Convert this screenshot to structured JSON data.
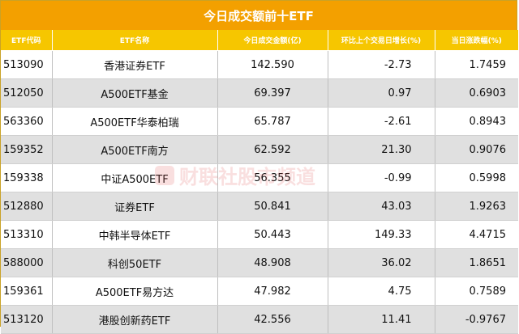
{
  "title": "今日成交额前十ETF",
  "headers": [
    "ETF代码",
    "ETF名称",
    "今日成交金额(亿)",
    "环比上个交易日增长(%)",
    "当日涨跌幅(%)"
  ],
  "rows": [
    {
      "code": "513090",
      "name": "香港证券ETF",
      "amount": "142.590",
      "ratio": "-2.73",
      "change": "1.7459"
    },
    {
      "code": "512050",
      "name": "A500ETF基金",
      "amount": "69.397",
      "ratio": "0.97",
      "change": "0.6903"
    },
    {
      "code": "563360",
      "name": "A500ETF华泰柏瑞",
      "amount": "65.787",
      "ratio": "-2.61",
      "change": "0.8943"
    },
    {
      "code": "159352",
      "name": "A500ETF南方",
      "amount": "62.592",
      "ratio": "21.30",
      "change": "0.9076"
    },
    {
      "code": "159338",
      "name": "中证A500ETF",
      "amount": "56.355",
      "ratio": "-0.99",
      "change": "0.5998"
    },
    {
      "code": "512880",
      "name": "证券ETF",
      "amount": "50.841",
      "ratio": "43.03",
      "change": "1.9263"
    },
    {
      "code": "513310",
      "name": "中韩半导体ETF",
      "amount": "50.443",
      "ratio": "149.33",
      "change": "4.4715"
    },
    {
      "code": "588000",
      "name": "科创50ETF",
      "amount": "48.908",
      "ratio": "36.02",
      "change": "1.8651"
    },
    {
      "code": "159361",
      "name": "A500ETF易方达",
      "amount": "47.982",
      "ratio": "4.75",
      "change": "0.7589"
    },
    {
      "code": "513120",
      "name": "港股创新药ETF",
      "amount": "42.556",
      "ratio": "11.41",
      "change": "-0.9767"
    }
  ],
  "watermark": "财联社股市频道"
}
